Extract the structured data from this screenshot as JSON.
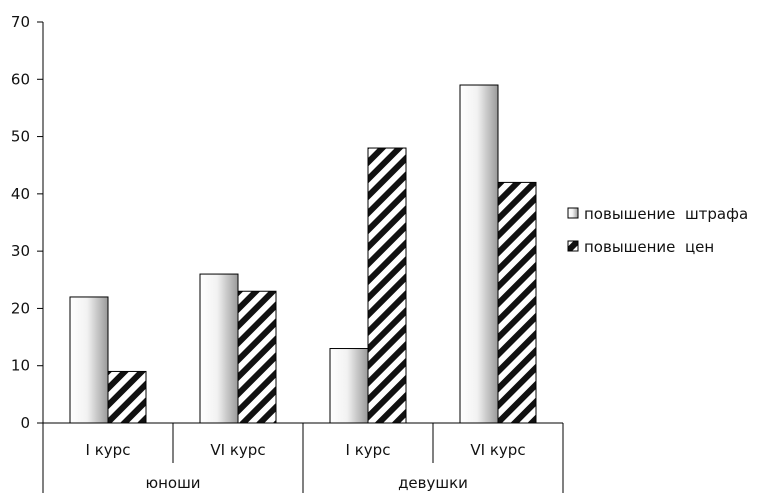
{
  "chart_data": {
    "type": "bar",
    "title": "",
    "xlabel": "",
    "ylabel": "",
    "ylim": [
      0,
      70
    ],
    "yticks": [
      0,
      10,
      20,
      30,
      40,
      50,
      60,
      70
    ],
    "grid": false,
    "legend_position": "right",
    "groups": [
      {
        "label": "юноши",
        "categories": [
          "I курс",
          "VI курс"
        ]
      },
      {
        "label": "девушки",
        "categories": [
          "I курс",
          "VI курс"
        ]
      }
    ],
    "categories": [
      "I курс",
      "VI курс",
      "I курс",
      "VI курс"
    ],
    "series": [
      {
        "name": "повышение  штрафа",
        "pattern": "gradient",
        "values": [
          22,
          26,
          13,
          59
        ]
      },
      {
        "name": "повышение  цен",
        "pattern": "hatch",
        "values": [
          9,
          23,
          48,
          42
        ]
      }
    ]
  }
}
